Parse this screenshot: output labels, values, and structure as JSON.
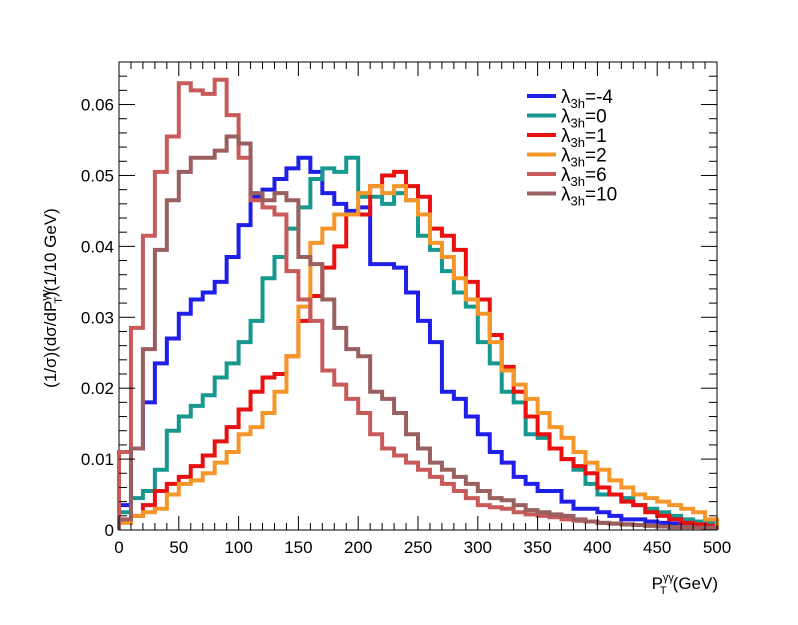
{
  "chart_data": {
    "type": "line",
    "style": "step-histogram",
    "title": "",
    "xlabel": "P",
    "xlabel_sub": "T",
    "xlabel_sup": "γγ",
    "xlabel_unit": "(GeV)",
    "ylabel_parts": {
      "a": "(1/σ)(dσ/dP",
      "sup": "γγ",
      "sub": "T",
      "b": ")(1/10 GeV)"
    },
    "xlim": [
      0,
      500
    ],
    "ylim": [
      0,
      0.066
    ],
    "xticks": [
      0,
      50,
      100,
      150,
      200,
      250,
      300,
      350,
      400,
      450,
      500
    ],
    "xtick_labels": [
      "0",
      "50",
      "100",
      "150",
      "200",
      "250",
      "300",
      "350",
      "400",
      "450",
      "500"
    ],
    "yticks": [
      0,
      0.01,
      0.02,
      0.03,
      0.04,
      0.05,
      0.06
    ],
    "ytick_labels": [
      "0",
      "0.01",
      "0.02",
      "0.03",
      "0.04",
      "0.05",
      "0.06"
    ],
    "bin_width": 10,
    "grid": false,
    "legend_position": "top-right",
    "series": [
      {
        "name": "λ3h=-4",
        "legend_symbol": "λ",
        "legend_sub": "3h",
        "legend_value": "=-4",
        "color": "#1f1fe8",
        "values": [
          0.0035,
          0.0115,
          0.018,
          0.0235,
          0.027,
          0.0305,
          0.0325,
          0.0335,
          0.035,
          0.0385,
          0.043,
          0.047,
          0.048,
          0.0495,
          0.051,
          0.0525,
          0.0505,
          0.0475,
          0.046,
          0.045,
          0.0455,
          0.0375,
          0.0375,
          0.037,
          0.0335,
          0.0295,
          0.0265,
          0.0195,
          0.0185,
          0.016,
          0.0135,
          0.011,
          0.0095,
          0.0075,
          0.0065,
          0.0055,
          0.0055,
          0.004,
          0.003,
          0.003,
          0.0025,
          0.002,
          0.0015,
          0.0015,
          0.0012,
          0.001,
          0.0009,
          0.0008,
          0.0007,
          0.0006
        ]
      },
      {
        "name": "λ3h=0",
        "legend_symbol": "λ",
        "legend_sub": "3h",
        "legend_value": "=0",
        "color": "#17988f",
        "values": [
          0.0025,
          0.0045,
          0.0055,
          0.0085,
          0.014,
          0.016,
          0.0175,
          0.019,
          0.0215,
          0.0235,
          0.0265,
          0.0295,
          0.0355,
          0.0385,
          0.0425,
          0.0455,
          0.0495,
          0.051,
          0.0505,
          0.0525,
          0.047,
          0.047,
          0.046,
          0.0475,
          0.0465,
          0.0415,
          0.0395,
          0.0365,
          0.0335,
          0.0315,
          0.0265,
          0.0235,
          0.0195,
          0.018,
          0.0135,
          0.013,
          0.0115,
          0.01,
          0.0085,
          0.0065,
          0.005,
          0.005,
          0.0045,
          0.0035,
          0.003,
          0.0025,
          0.002,
          0.0015,
          0.0012,
          0.001
        ]
      },
      {
        "name": "λ3h=1",
        "legend_symbol": "λ",
        "legend_sub": "3h",
        "legend_value": "=1",
        "color": "#e81010",
        "values": [
          0.0012,
          0.002,
          0.0035,
          0.0055,
          0.0065,
          0.0075,
          0.009,
          0.0105,
          0.0125,
          0.0145,
          0.017,
          0.0195,
          0.0215,
          0.022,
          0.0245,
          0.0295,
          0.033,
          0.037,
          0.04,
          0.0445,
          0.0445,
          0.0485,
          0.05,
          0.0505,
          0.0485,
          0.047,
          0.0425,
          0.0415,
          0.0395,
          0.035,
          0.0325,
          0.0275,
          0.023,
          0.0195,
          0.016,
          0.0135,
          0.0115,
          0.01,
          0.009,
          0.008,
          0.006,
          0.005,
          0.004,
          0.0035,
          0.0025,
          0.002,
          0.0015,
          0.001,
          0.0008,
          0.0006
        ]
      },
      {
        "name": "λ3h=2",
        "legend_symbol": "λ",
        "legend_sub": "3h",
        "legend_value": "=2",
        "color": "#f5962a",
        "values": [
          0.001,
          0.002,
          0.0025,
          0.003,
          0.005,
          0.0065,
          0.007,
          0.008,
          0.0095,
          0.011,
          0.0135,
          0.0145,
          0.0165,
          0.0195,
          0.0245,
          0.0315,
          0.0405,
          0.0425,
          0.0445,
          0.0445,
          0.0475,
          0.0485,
          0.0475,
          0.0485,
          0.0465,
          0.0445,
          0.0405,
          0.0385,
          0.0355,
          0.0325,
          0.0305,
          0.0265,
          0.0225,
          0.0205,
          0.0185,
          0.0165,
          0.0145,
          0.013,
          0.011,
          0.0095,
          0.0085,
          0.007,
          0.006,
          0.005,
          0.0045,
          0.004,
          0.0035,
          0.003,
          0.0025,
          0.0015
        ]
      },
      {
        "name": "λ3h=6",
        "legend_symbol": "λ",
        "legend_sub": "3h",
        "legend_value": "=6",
        "color": "#c85a5a",
        "values": [
          0.011,
          0.0285,
          0.0415,
          0.0505,
          0.0555,
          0.063,
          0.062,
          0.0615,
          0.0635,
          0.0585,
          0.0525,
          0.0465,
          0.0455,
          0.0445,
          0.0365,
          0.0325,
          0.0295,
          0.0225,
          0.0205,
          0.0185,
          0.0165,
          0.0135,
          0.0115,
          0.0105,
          0.0095,
          0.0085,
          0.0075,
          0.0065,
          0.0055,
          0.0045,
          0.0035,
          0.0032,
          0.003,
          0.0025,
          0.0022,
          0.002,
          0.0018,
          0.0015,
          0.0013,
          0.0012,
          0.001,
          0.0009,
          0.0008,
          0.0007,
          0.0006,
          0.0005,
          0.0004,
          0.0004,
          0.0003,
          0.0003
        ]
      },
      {
        "name": "λ3h=10",
        "legend_symbol": "λ",
        "legend_sub": "3h",
        "legend_value": "=10",
        "color": "#9a5f5f",
        "values": [
          0.0015,
          0.0115,
          0.0255,
          0.0395,
          0.0465,
          0.0505,
          0.0525,
          0.0525,
          0.0535,
          0.0555,
          0.0545,
          0.0475,
          0.0465,
          0.0475,
          0.0465,
          0.0385,
          0.0375,
          0.0325,
          0.0285,
          0.0255,
          0.0245,
          0.0195,
          0.0185,
          0.0165,
          0.0135,
          0.0115,
          0.0095,
          0.0085,
          0.0075,
          0.0065,
          0.0055,
          0.0045,
          0.0042,
          0.0035,
          0.0028,
          0.0025,
          0.0022,
          0.002,
          0.0015,
          0.0012,
          0.001,
          0.0009,
          0.0008,
          0.0007,
          0.0006,
          0.0005,
          0.0004,
          0.0004,
          0.0003,
          0.0003
        ]
      }
    ]
  }
}
